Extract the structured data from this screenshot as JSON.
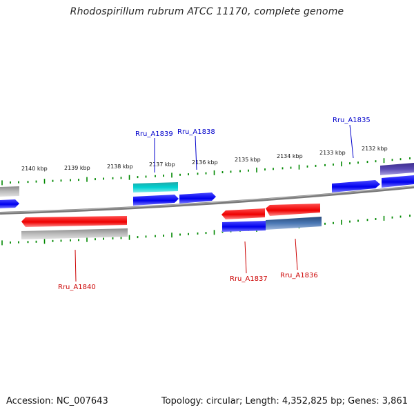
{
  "title": "Rhodospirillum rubrum ATCC 11170, complete genome",
  "footer": {
    "accession": "Accession: NC_007643",
    "summary": "Topology: circular; Length: 4,352,825 bp; Genes: 3,861"
  },
  "colors": {
    "forward_gene": "#0000ee",
    "reverse_gene": "#ee0000",
    "label_forward": "#0000cc",
    "label_reverse": "#cc0000",
    "tick": "#008800",
    "backbone": "#7a7a7a",
    "cyan_feature": "#00c8c8",
    "grey_feature": "#b8b8b8",
    "steel_feature": "#4a78b4",
    "purple_feature": "#5a4ab4"
  },
  "ruler": {
    "unit": "kbp",
    "labels": [
      "2140 kbp",
      "2139 kbp",
      "2138 kbp",
      "2137 kbp",
      "2136 kbp",
      "2135 kbp",
      "2134 kbp",
      "2133 kbp",
      "2132 kbp"
    ]
  },
  "gene_labels": [
    {
      "id": "Ru_A1839",
      "text": "Rru_A1839",
      "strand": "forward"
    },
    {
      "id": "Ru_A1838",
      "text": "Rru_A1838",
      "strand": "forward"
    },
    {
      "id": "Ru_A1835",
      "text": "Rru_A1835",
      "strand": "forward"
    },
    {
      "id": "Ru_A1840",
      "text": "Rru_A1840",
      "strand": "reverse"
    },
    {
      "id": "Ru_A1837",
      "text": "Rru_A1837",
      "strand": "reverse"
    },
    {
      "id": "Ru_A1836",
      "text": "Rru_A1836",
      "strand": "reverse"
    }
  ]
}
